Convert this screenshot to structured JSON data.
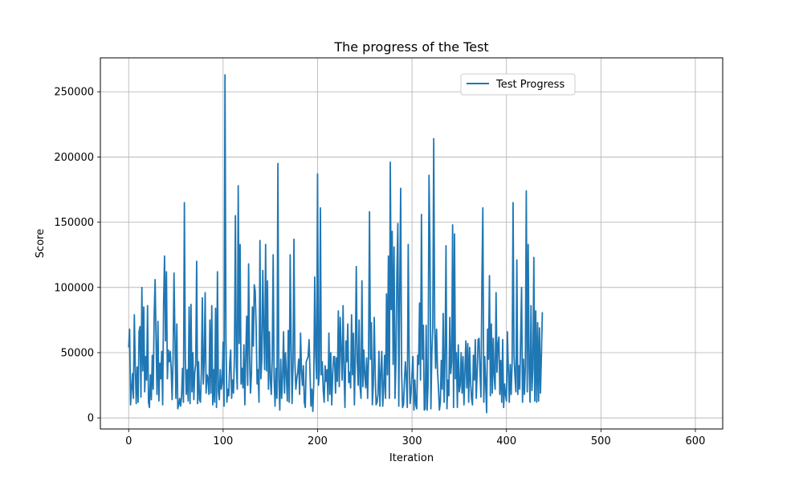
{
  "chart_data": {
    "type": "line",
    "title": "The progress of the Test",
    "xlabel": "Iteration",
    "ylabel": "Score",
    "xlim": [
      -29.95,
      628.95
    ],
    "ylim": [
      -8500,
      276000
    ],
    "xticks": [
      0,
      100,
      200,
      300,
      400,
      500,
      600
    ],
    "yticks": [
      0,
      50000,
      100000,
      150000,
      200000,
      250000
    ],
    "grid": true,
    "legend_position": "top-center",
    "series": [
      {
        "name": "Test Progress",
        "color": "#1f77b4",
        "x_start": 0,
        "x_step": 1,
        "values": [
          54000,
          68000,
          10000,
          22000,
          34000,
          15000,
          79000,
          40000,
          11000,
          39000,
          12000,
          66000,
          70000,
          16000,
          100000,
          36000,
          85000,
          20000,
          47000,
          29000,
          86000,
          12000,
          8000,
          33000,
          14000,
          48000,
          22000,
          77000,
          106000,
          60000,
          18000,
          74000,
          13000,
          42000,
          30000,
          51000,
          10000,
          88000,
          124000,
          59000,
          112000,
          30000,
          52000,
          43000,
          51000,
          38000,
          14000,
          45000,
          111000,
          62000,
          15000,
          72000,
          7000,
          10000,
          15000,
          9000,
          16000,
          38000,
          12000,
          165000,
          45000,
          18000,
          37000,
          13000,
          85000,
          11000,
          87000,
          20000,
          50000,
          14000,
          35000,
          41000,
          120000,
          11000,
          43000,
          14000,
          12000,
          35000,
          92000,
          26000,
          43000,
          96000,
          19000,
          33000,
          30000,
          18000,
          75000,
          19000,
          86000,
          10000,
          37000,
          12000,
          84000,
          8000,
          112000,
          20000,
          14000,
          37000,
          22000,
          27000,
          58000,
          9000,
          263000,
          60000,
          12000,
          22000,
          17000,
          42000,
          52000,
          15000,
          29000,
          19000,
          48000,
          155000,
          40000,
          22000,
          178000,
          57000,
          133000,
          26000,
          38000,
          23000,
          56000,
          10000,
          49000,
          78000,
          25000,
          118000,
          47000,
          19000,
          34000,
          85000,
          55000,
          102000,
          97000,
          69000,
          26000,
          37000,
          12000,
          136000,
          30000,
          45000,
          113000,
          68000,
          37000,
          133000,
          36000,
          105000,
          22000,
          66000,
          29000,
          18000,
          46000,
          125000,
          30000,
          9000,
          38000,
          15000,
          195000,
          30000,
          6000,
          45000,
          15000,
          32000,
          66000,
          19000,
          50000,
          33000,
          13000,
          67000,
          12000,
          125000,
          57000,
          11000,
          40000,
          137000,
          43000,
          22000,
          30000,
          35000,
          45000,
          18000,
          65000,
          36000,
          25000,
          40000,
          12000,
          8000,
          43000,
          45000,
          47000,
          60000,
          35000,
          9000,
          22000,
          5000,
          27000,
          108000,
          49000,
          30000,
          187000,
          25000,
          36000,
          161000,
          33000,
          43000,
          21000,
          12000,
          40000,
          28000,
          37000,
          13000,
          65000,
          18000,
          50000,
          10000,
          33000,
          47000,
          47000,
          19000,
          46000,
          28000,
          82000,
          24000,
          77000,
          52000,
          29000,
          86000,
          36000,
          8000,
          59000,
          43000,
          72000,
          27000,
          35000,
          23000,
          79000,
          33000,
          65000,
          10000,
          49000,
          116000,
          43000,
          25000,
          75000,
          24000,
          15000,
          105000,
          24000,
          52000,
          33000,
          23000,
          46000,
          15000,
          47000,
          158000,
          45000,
          73000,
          10000,
          25000,
          77000,
          34000,
          10000,
          12000,
          18000,
          51000,
          9000,
          35000,
          51000,
          9000,
          23000,
          48000,
          15000,
          95000,
          33000,
          124000,
          15000,
          196000,
          83000,
          143000,
          41000,
          131000,
          15000,
          44000,
          111000,
          149000,
          9000,
          97000,
          176000,
          35000,
          8000,
          10000,
          28000,
          43000,
          30000,
          8000,
          133000,
          46000,
          11000,
          20000,
          34000,
          47000,
          6000,
          29000,
          10000,
          7000,
          48000,
          41000,
          88000,
          29000,
          156000,
          45000,
          71000,
          6000,
          7000,
          71000,
          6000,
          25000,
          186000,
          130000,
          7000,
          50000,
          70000,
          214000,
          71000,
          38000,
          68000,
          36000,
          23000,
          6000,
          12000,
          44000,
          22000,
          80000,
          12000,
          48000,
          132000,
          7000,
          29000,
          17000,
          77000,
          34000,
          43000,
          148000,
          8000,
          141000,
          30000,
          50000,
          8000,
          56000,
          20000,
          25000,
          50000,
          19000,
          47000,
          10000,
          35000,
          59000,
          23000,
          57000,
          12000,
          54000,
          28000,
          15000,
          10000,
          48000,
          29000,
          60000,
          15000,
          35000,
          60000,
          61000,
          35000,
          16000,
          104000,
          161000,
          12000,
          47000,
          26000,
          4000,
          68000,
          45000,
          109000,
          17000,
          72000,
          19000,
          61000,
          32000,
          22000,
          96000,
          35000,
          56000,
          62000,
          18000,
          44000,
          12000,
          60000,
          8000,
          26000,
          18000,
          13000,
          66000,
          37000,
          12000,
          41000,
          18000,
          43000,
          165000,
          47000,
          32000,
          20000,
          121000,
          18000,
          40000,
          22000,
          60000,
          100000,
          12000,
          45000,
          18000,
          40000,
          174000,
          20000,
          133000,
          38000,
          12000,
          86000,
          21000,
          38000,
          123000,
          13000,
          82000,
          12000,
          73000,
          13000,
          69000,
          19000,
          48000,
          81000
        ]
      }
    ]
  }
}
